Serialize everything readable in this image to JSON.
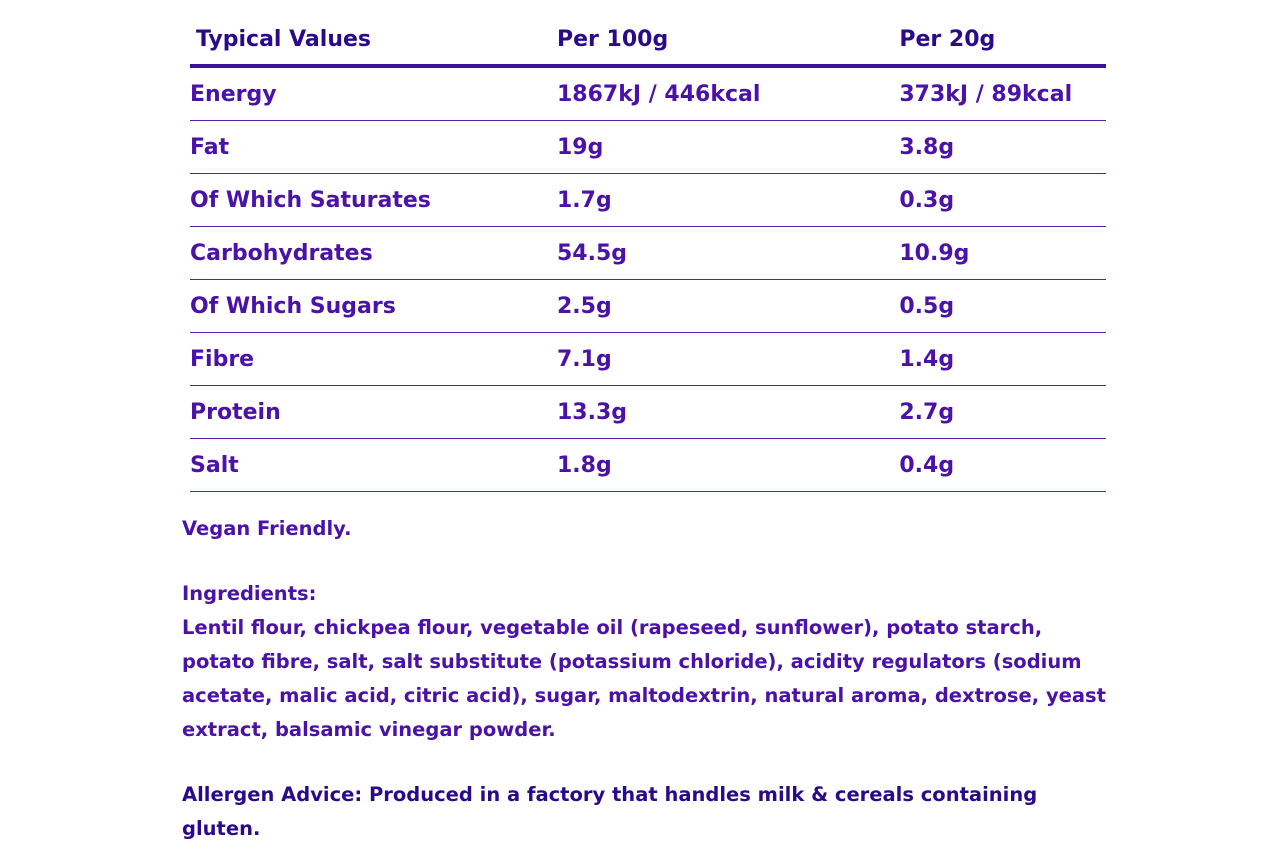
{
  "table": {
    "headers": [
      "Typical Values",
      "Per 100g",
      "Per 20g"
    ],
    "rows": [
      [
        "Energy",
        "1867kJ / 446kcal",
        "373kJ / 89kcal"
      ],
      [
        "Fat",
        "19g",
        "3.8g"
      ],
      [
        "Of Which Saturates",
        "1.7g",
        "0.3g"
      ],
      [
        "Carbohydrates",
        "54.5g",
        "10.9g"
      ],
      [
        "Of Which Sugars",
        "2.5g",
        "0.5g"
      ],
      [
        "Fibre",
        "7.1g",
        "1.4g"
      ],
      [
        "Protein",
        "13.3g",
        "2.7g"
      ],
      [
        "Salt",
        "1.8g",
        "0.4g"
      ]
    ]
  },
  "vegan_note": "Vegan Friendly.",
  "ingredients": {
    "heading": "Ingredients:",
    "body": "Lentil flour, chickpea flour, vegetable oil (rapeseed, sunflower), potato starch, potato fibre, salt, salt substitute (potassium chloride), acidity regulators (sodium acetate, malic acid, citric acid), sugar, maltodextrin, natural aroma, dextrose, yeast extract, balsamic vinegar powder."
  },
  "allergen_advice": "Allergen Advice: Produced in a factory that handles milk & cereals containing gluten.",
  "colors": {
    "text": "#4a12a8",
    "heading": "#2a0a8a",
    "rule": "#3c1396"
  }
}
